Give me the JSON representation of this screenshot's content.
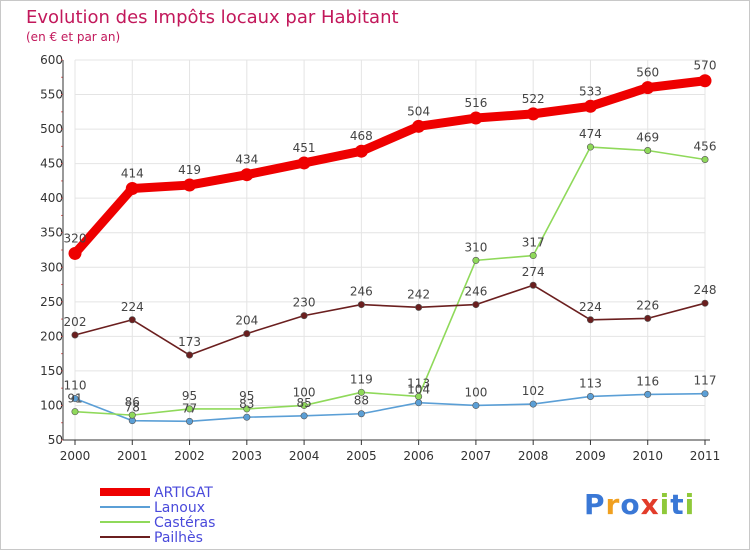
{
  "chart_data": {
    "type": "line",
    "title": "Evolution des Impôts locaux par Habitant",
    "subtitle": "(en € et par an)",
    "x": [
      "2000",
      "2001",
      "2002",
      "2003",
      "2004",
      "2005",
      "2006",
      "2007",
      "2008",
      "2009",
      "2010",
      "2011"
    ],
    "ylim": [
      50,
      600
    ],
    "yticks": [
      50,
      100,
      150,
      200,
      250,
      300,
      350,
      400,
      450,
      500,
      550,
      600
    ],
    "grid": true,
    "series": [
      {
        "name": "ARTIGAT",
        "color": "#ee0000",
        "bold": true,
        "values": [
          320,
          414,
          419,
          434,
          451,
          468,
          504,
          516,
          522,
          533,
          560,
          570
        ]
      },
      {
        "name": "Lanoux",
        "color": "#5b9fd6",
        "bold": false,
        "values": [
          110,
          78,
          77,
          83,
          85,
          88,
          104,
          100,
          102,
          113,
          116,
          117
        ]
      },
      {
        "name": "Castéras",
        "color": "#8fd95a",
        "bold": false,
        "values": [
          91,
          86,
          95,
          95,
          100,
          119,
          113,
          310,
          317,
          474,
          469,
          456
        ]
      },
      {
        "name": "Pailhès",
        "color": "#6b1f1f",
        "bold": false,
        "values": [
          202,
          224,
          173,
          204,
          230,
          246,
          242,
          246,
          274,
          224,
          226,
          248
        ]
      }
    ],
    "legend_position": "bottom-left"
  },
  "colors": {
    "title": "#c2185b",
    "axis": "#333333",
    "grid": "#e4e4e4",
    "legend_text": "#4a4adb"
  },
  "logo": {
    "letters": [
      "P",
      "r",
      "o",
      "x",
      "i",
      "t",
      "i"
    ],
    "colors": [
      "#3a78d6",
      "#f0a020",
      "#3a78d6",
      "#e23c2a",
      "#8fc93a",
      "#3a78d6",
      "#8fc93a"
    ]
  }
}
